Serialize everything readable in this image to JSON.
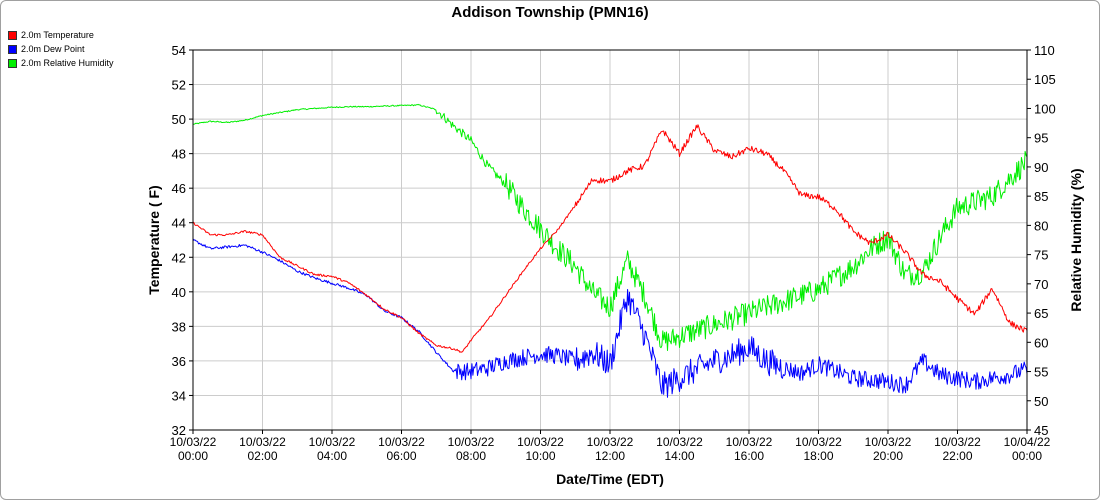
{
  "chart_data": {
    "type": "line",
    "title": "Addison Township (PMN16)",
    "xlabel": "Date/Time (EDT)",
    "ylabel_left": "Temperature ( F)",
    "ylabel_right": "Relative Humidity (%)",
    "ylim_left": [
      32,
      54
    ],
    "ylim_right": [
      45,
      110
    ],
    "yticks_left": [
      32,
      34,
      36,
      38,
      40,
      42,
      44,
      46,
      48,
      50,
      52,
      54
    ],
    "yticks_right": [
      45,
      50,
      55,
      60,
      65,
      70,
      75,
      80,
      85,
      90,
      95,
      100,
      105,
      110
    ],
    "xlim_hours": [
      0,
      24
    ],
    "xticks": [
      {
        "h": 0,
        "date": "10/03/22",
        "time": "00:00"
      },
      {
        "h": 2,
        "date": "10/03/22",
        "time": "02:00"
      },
      {
        "h": 4,
        "date": "10/03/22",
        "time": "04:00"
      },
      {
        "h": 6,
        "date": "10/03/22",
        "time": "06:00"
      },
      {
        "h": 8,
        "date": "10/03/22",
        "time": "08:00"
      },
      {
        "h": 10,
        "date": "10/03/22",
        "time": "10:00"
      },
      {
        "h": 12,
        "date": "10/03/22",
        "time": "12:00"
      },
      {
        "h": 14,
        "date": "10/03/22",
        "time": "14:00"
      },
      {
        "h": 16,
        "date": "10/03/22",
        "time": "16:00"
      },
      {
        "h": 18,
        "date": "10/03/22",
        "time": "18:00"
      },
      {
        "h": 20,
        "date": "10/03/22",
        "time": "20:00"
      },
      {
        "h": 22,
        "date": "10/03/22",
        "time": "22:00"
      },
      {
        "h": 24,
        "date": "10/04/22",
        "time": "00:00"
      }
    ],
    "grid": true,
    "legend_position": "top-left",
    "series": [
      {
        "name": "2.0m Temperature",
        "color": "#ff0000",
        "axis": "left",
        "x": [
          0,
          0.5,
          1,
          1.5,
          2,
          2.5,
          3,
          3.5,
          4,
          4.5,
          5,
          5.5,
          6,
          6.5,
          7,
          7.5,
          7.75,
          8,
          8.5,
          9,
          9.5,
          10,
          10.5,
          11,
          11.5,
          12,
          12.5,
          13,
          13.5,
          14,
          14.5,
          15,
          15.5,
          16,
          16.5,
          17,
          17.5,
          18,
          18.5,
          19,
          19.5,
          20,
          20.5,
          21,
          21.5,
          22,
          22.5,
          23,
          23.5,
          24
        ],
        "y": [
          44.0,
          43.3,
          43.3,
          43.5,
          43.3,
          42.0,
          41.5,
          41.0,
          40.9,
          40.5,
          39.8,
          39.0,
          38.5,
          37.6,
          36.9,
          36.7,
          36.5,
          37.2,
          38.4,
          39.8,
          41.2,
          42.5,
          43.6,
          45.0,
          46.5,
          46.4,
          47.0,
          47.3,
          49.4,
          48.0,
          49.6,
          48.2,
          47.8,
          48.3,
          48.0,
          47.0,
          45.6,
          45.5,
          44.8,
          43.5,
          42.8,
          43.3,
          42.3,
          41.0,
          40.6,
          39.6,
          38.7,
          40.2,
          38.2,
          37.7
        ]
      },
      {
        "name": "2.0m Dew Point",
        "color": "#0000ff",
        "axis": "left",
        "x": [
          0,
          0.5,
          1,
          1.5,
          2,
          2.5,
          3,
          3.5,
          4,
          4.5,
          5,
          5.5,
          6,
          6.5,
          7,
          7.5,
          8,
          8.5,
          9,
          9.5,
          10,
          10.5,
          11,
          11.5,
          12,
          12.5,
          13,
          13.5,
          14,
          14.5,
          15,
          15.5,
          16,
          16.5,
          17,
          17.5,
          18,
          18.5,
          19,
          19.5,
          20,
          20.5,
          21,
          21.5,
          22,
          22.5,
          23,
          23.5,
          24
        ],
        "y": [
          43.0,
          42.5,
          42.6,
          42.7,
          42.3,
          41.8,
          41.2,
          40.8,
          40.5,
          40.2,
          39.8,
          38.9,
          38.5,
          37.7,
          36.5,
          35.4,
          35.4,
          35.6,
          36.0,
          36.2,
          36.4,
          36.3,
          36.0,
          36.5,
          35.8,
          39.8,
          37.5,
          34.5,
          35.0,
          35.5,
          36.0,
          36.3,
          36.8,
          36.0,
          35.6,
          35.3,
          35.8,
          35.4,
          35.0,
          34.9,
          34.8,
          34.6,
          36.0,
          35.2,
          35.0,
          34.8,
          35.0,
          35.2,
          35.5
        ]
      },
      {
        "name": "2.0m Relative Humidity",
        "color": "#00ee00",
        "axis": "right",
        "x": [
          0,
          0.5,
          1,
          1.5,
          2,
          2.5,
          3,
          3.5,
          4,
          4.5,
          5,
          5.5,
          6,
          6.5,
          7,
          7.5,
          8,
          8.5,
          9,
          9.5,
          10,
          10.5,
          11,
          11.5,
          12,
          12.5,
          13,
          13.5,
          14,
          14.5,
          15,
          15.5,
          16,
          16.5,
          17,
          17.5,
          18,
          18.5,
          19,
          19.5,
          20,
          20.5,
          21,
          21.5,
          22,
          22.5,
          23,
          23.5,
          24
        ],
        "y": [
          97.3,
          97.8,
          97.6,
          98.0,
          98.8,
          99.3,
          99.8,
          100.0,
          100.2,
          100.3,
          100.3,
          100.4,
          100.5,
          100.6,
          99.8,
          97.0,
          94.5,
          90.0,
          87.0,
          83.0,
          79.5,
          76.0,
          73.0,
          68.5,
          66.0,
          74.0,
          68.0,
          60.0,
          61.0,
          62.0,
          63.0,
          64.0,
          65.0,
          66.0,
          67.0,
          68.0,
          69.0,
          71.0,
          73.0,
          76.0,
          78.0,
          71.5,
          72.0,
          78.0,
          83.0,
          84.0,
          85.0,
          88.0,
          91.0
        ]
      }
    ]
  }
}
